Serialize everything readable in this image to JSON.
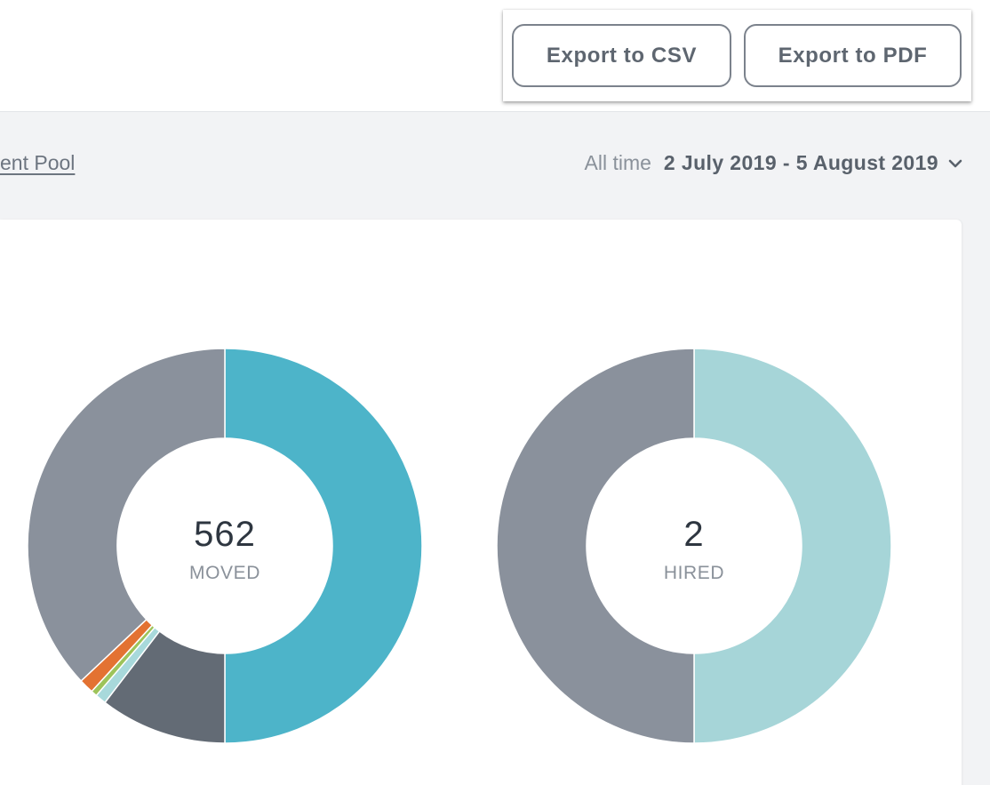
{
  "header": {
    "export_csv_label": "Export to CSV",
    "export_pdf_label": "Export to PDF"
  },
  "subnav": {
    "breadcrumb_text": "ent Pool",
    "range_label": "All time",
    "range_value": "2 July 2019 - 5 August 2019"
  },
  "chart_data": [
    {
      "type": "pie",
      "total": "562",
      "center_label": "MOVED",
      "slices": [
        {
          "value": 50.0,
          "color": "#4db4c9"
        },
        {
          "value": 10.4,
          "color": "#636b75"
        },
        {
          "value": 0.9,
          "color": "#a8d9db"
        },
        {
          "value": 0.5,
          "color": "#9dc35a"
        },
        {
          "value": 1.2,
          "color": "#e37232"
        },
        {
          "value": 37.0,
          "color": "#8a919c"
        }
      ]
    },
    {
      "type": "pie",
      "total": "2",
      "center_label": "HIRED",
      "slices": [
        {
          "value": 50.0,
          "color": "#a6d5d8"
        },
        {
          "value": 50.0,
          "color": "#8a919c"
        }
      ]
    }
  ]
}
